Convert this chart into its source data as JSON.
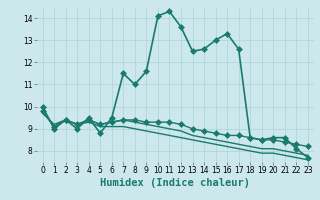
{
  "xlabel": "Humidex (Indice chaleur)",
  "background_color": "#cce8ec",
  "grid_color": "#aad4d8",
  "line_color": "#1a7a6e",
  "xlim": [
    -0.5,
    23.5
  ],
  "ylim": [
    7.5,
    14.5
  ],
  "yticks": [
    8,
    9,
    10,
    11,
    12,
    13,
    14
  ],
  "xticks": [
    0,
    1,
    2,
    3,
    4,
    5,
    6,
    7,
    8,
    9,
    10,
    11,
    12,
    13,
    14,
    15,
    16,
    17,
    18,
    19,
    20,
    21,
    22,
    23
  ],
  "series": [
    [
      10.0,
      9.0,
      9.4,
      9.0,
      9.5,
      8.8,
      9.5,
      11.5,
      11.0,
      11.6,
      14.1,
      14.3,
      13.6,
      12.5,
      12.6,
      13.0,
      13.3,
      12.6,
      8.6,
      8.5,
      8.6,
      8.6,
      8.1,
      7.7
    ],
    [
      9.8,
      9.1,
      9.4,
      9.2,
      9.4,
      9.2,
      9.3,
      9.4,
      9.4,
      9.3,
      9.3,
      9.3,
      9.2,
      9.0,
      8.9,
      8.8,
      8.7,
      8.7,
      8.6,
      8.5,
      8.5,
      8.4,
      8.3,
      8.2
    ],
    [
      9.7,
      9.2,
      9.4,
      9.2,
      9.3,
      9.1,
      9.1,
      9.1,
      9.0,
      8.9,
      8.8,
      8.7,
      8.6,
      8.5,
      8.4,
      8.3,
      8.2,
      8.1,
      8.0,
      7.9,
      7.9,
      7.8,
      7.7,
      7.6
    ],
    [
      9.8,
      9.1,
      9.4,
      9.2,
      9.4,
      9.2,
      9.3,
      9.4,
      9.3,
      9.2,
      9.1,
      9.0,
      8.9,
      8.7,
      8.6,
      8.5,
      8.4,
      8.3,
      8.2,
      8.1,
      8.1,
      8.0,
      7.9,
      7.8
    ]
  ],
  "markers": [
    "D",
    "D",
    null,
    null
  ],
  "linewidths": [
    1.2,
    1.0,
    1.0,
    1.0
  ],
  "marker_sizes": [
    3,
    3,
    0,
    0
  ],
  "font_size_ticks": 5.5,
  "font_size_xlabel": 7.5
}
